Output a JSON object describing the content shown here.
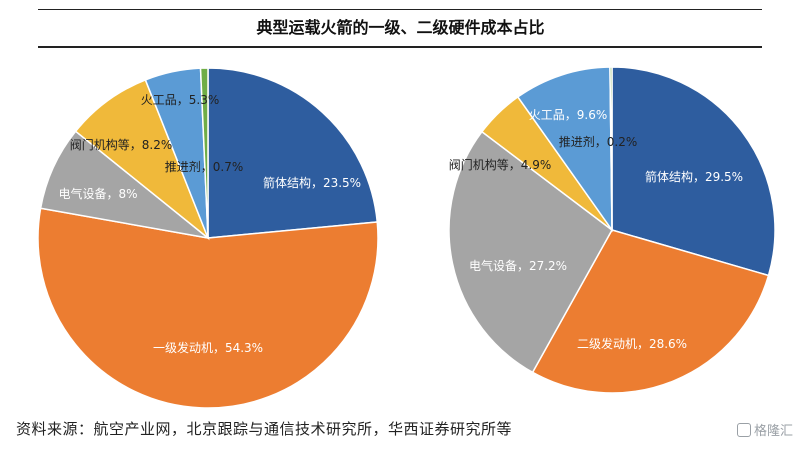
{
  "title": "典型运载火箭的一级、二级硬件成本占比",
  "source": "资料来源：航空产业网，北京跟踪与通信技术研究所，华西证券研究所等",
  "watermark": "格隆汇",
  "chart_data": [
    {
      "type": "pie",
      "title": "",
      "slices": [
        {
          "label": "箭体结构",
          "value": 23.5,
          "display": "箭体结构，23.5%",
          "color": "#2e5d9f"
        },
        {
          "label": "一级发动机",
          "value": 54.3,
          "display": "一级发动机，54.3%",
          "color": "#ec7d31"
        },
        {
          "label": "电气设备",
          "value": 8,
          "display": "电气设备，8%",
          "color": "#a5a5a5"
        },
        {
          "label": "阀门机构等",
          "value": 8.2,
          "display": "阀门机构等，8.2%",
          "color": "#f0b93a"
        },
        {
          "label": "火工品",
          "value": 5.3,
          "display": "火工品，5.3%",
          "color": "#5b9bd5"
        },
        {
          "label": "推进剂",
          "value": 0.7,
          "display": "推进剂，0.7%",
          "color": "#70ad47"
        }
      ]
    },
    {
      "type": "pie",
      "title": "",
      "slices": [
        {
          "label": "箭体结构",
          "value": 29.5,
          "display": "箭体结构，29.5%",
          "color": "#2e5d9f"
        },
        {
          "label": "二级发动机",
          "value": 28.6,
          "display": "二级发动机，28.6%",
          "color": "#ec7d31"
        },
        {
          "label": "电气设备",
          "value": 27.2,
          "display": "电气设备，27.2%",
          "color": "#a5a5a5"
        },
        {
          "label": "阀门机构等",
          "value": 4.9,
          "display": "阀门机构等，4.9%",
          "color": "#f0b93a"
        },
        {
          "label": "火工品",
          "value": 9.6,
          "display": "火工品，9.6%",
          "color": "#5b9bd5"
        },
        {
          "label": "推进剂",
          "value": 0.2,
          "display": "推进剂，0.2%",
          "color": "#70ad47"
        }
      ]
    }
  ]
}
